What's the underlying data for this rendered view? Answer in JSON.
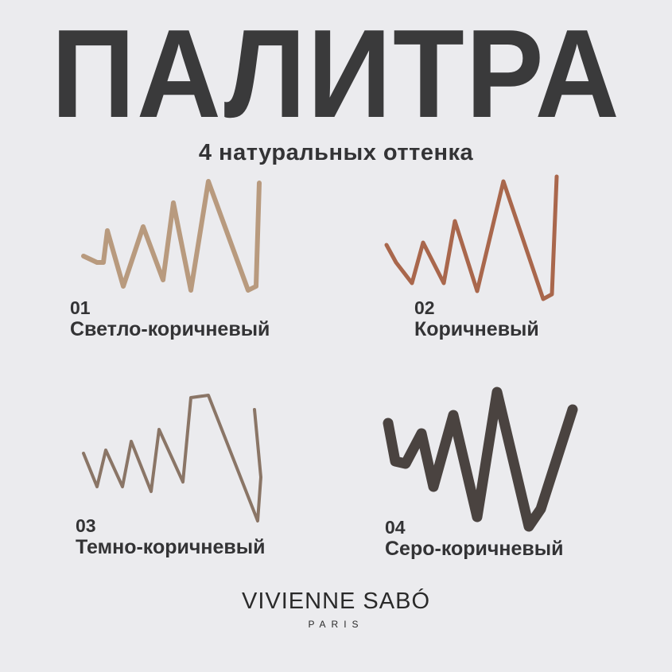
{
  "title": "ПАЛИТРА",
  "subtitle": "4 натуральных оттенка",
  "shades": [
    {
      "number": "01",
      "name": "Светло-коричневый",
      "color": "#b89a7e"
    },
    {
      "number": "02",
      "name": "Коричневый",
      "color": "#a9674c"
    },
    {
      "number": "03",
      "name": "Темно-коричневый",
      "color": "#8a7566"
    },
    {
      "number": "04",
      "name": "Серо-коричневый",
      "color": "#4a4340"
    }
  ],
  "brand": {
    "name": "VIVIENNE SABÓ",
    "tagline": "PARIS"
  }
}
